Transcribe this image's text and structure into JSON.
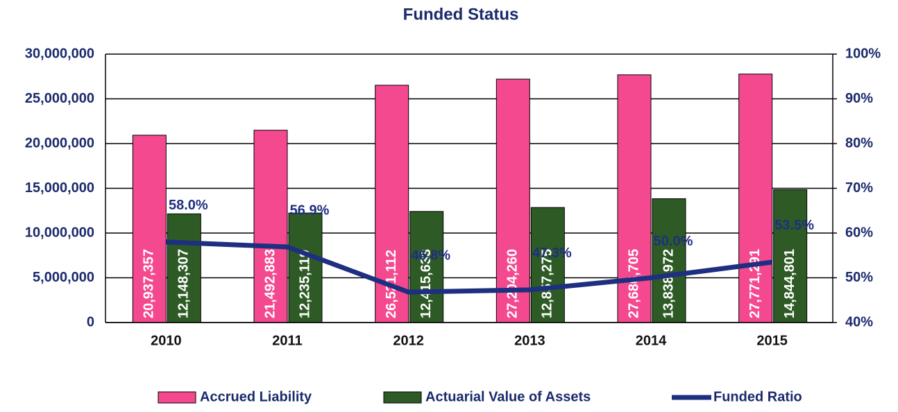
{
  "chart_data": {
    "type": "bar-line",
    "title": "Funded Status",
    "categories": [
      "2010",
      "2011",
      "2012",
      "2013",
      "2014",
      "2015"
    ],
    "series": [
      {
        "name": "Accrued Liability",
        "color": "#f4498f",
        "type": "bar",
        "values": [
          20937357,
          21492883,
          26521112,
          27204260,
          27686705,
          27771291
        ],
        "value_labels": [
          "20,937,357",
          "21,492,883",
          "26,521,112",
          "27,204,260",
          "27,686,705",
          "27,771,291"
        ]
      },
      {
        "name": "Actuarial Value of Assets",
        "color": "#2e5b25",
        "type": "bar",
        "values": [
          12148307,
          12235119,
          12415633,
          12857275,
          13838972,
          14844801
        ],
        "value_labels": [
          "12,148,307",
          "12,235,119",
          "12,415,633",
          "12,857,275",
          "13,838,972",
          "14,844,801"
        ]
      },
      {
        "name": "Funded Ratio",
        "color": "#1e2f80",
        "type": "line",
        "axis": "y2",
        "values": [
          58.0,
          56.9,
          46.8,
          47.3,
          50.0,
          53.5
        ],
        "value_labels": [
          "58.0%",
          "56.9%",
          "46.8%",
          "47.3%",
          "50.0%",
          "53.5%"
        ]
      }
    ],
    "ylim": [
      0,
      30000000
    ],
    "yticks": [
      0,
      {
        "value": 5000000,
        "label": "5,000,000"
      },
      {
        "value": 10000000,
        "label": "10,000,000"
      },
      {
        "value": 15000000,
        "label": "15,000,000"
      },
      {
        "value": 20000000,
        "label": "20,000,000"
      },
      {
        "value": 25000000,
        "label": "25,000,000"
      },
      {
        "value": 30000000,
        "label": "30,000,000"
      }
    ],
    "y2lim": [
      40,
      100
    ],
    "y2ticks": [
      {
        "value": 40,
        "label": "40%"
      },
      {
        "value": 50,
        "label": "50%"
      },
      {
        "value": 60,
        "label": "60%"
      },
      {
        "value": 70,
        "label": "70%"
      },
      {
        "value": 80,
        "label": "80%"
      },
      {
        "value": 90,
        "label": "90%"
      },
      {
        "value": 100,
        "label": "100%"
      }
    ],
    "grid": true,
    "legend": "bottom"
  }
}
